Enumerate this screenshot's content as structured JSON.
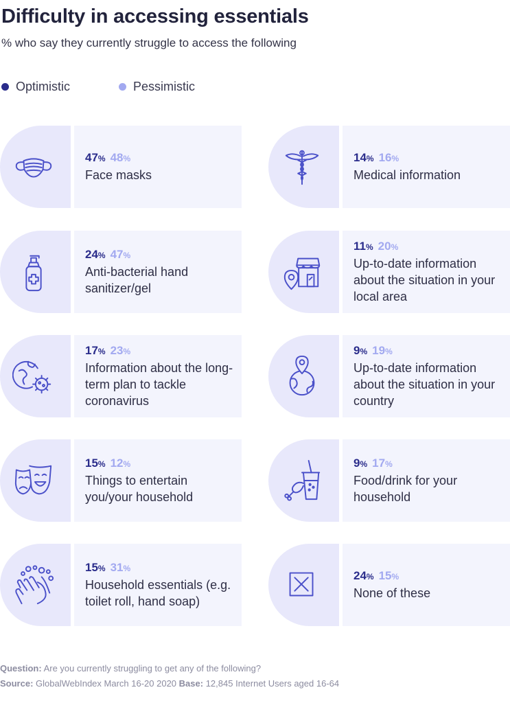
{
  "header": {
    "title": "Difficulty in accessing essentials",
    "subtitle": "% who say they currently struggle to access the following"
  },
  "legend": [
    {
      "label": "Optimistic",
      "color": "#2a2c8b"
    },
    {
      "label": "Pessimistic",
      "color": "#a2a9f0"
    }
  ],
  "colors": {
    "icon_panel": "#e8e8fb",
    "text_panel": "#f3f4fd",
    "icon_stroke": "#4a50c9"
  },
  "chart_data": {
    "type": "table",
    "unit": "%",
    "series": [
      {
        "name": "Optimistic",
        "values": [
          47,
          14,
          24,
          11,
          17,
          9,
          15,
          9,
          15,
          24
        ]
      },
      {
        "name": "Pessimistic",
        "values": [
          48,
          16,
          47,
          20,
          23,
          19,
          12,
          17,
          31,
          15
        ]
      }
    ],
    "items": [
      {
        "label": "Face masks",
        "optimistic": 47,
        "pessimistic": 48,
        "icon": "face-mask-icon"
      },
      {
        "label": "Medical information",
        "optimistic": 14,
        "pessimistic": 16,
        "icon": "caduceus-icon"
      },
      {
        "label": "Anti-bacterial hand sanitizer/gel",
        "optimistic": 24,
        "pessimistic": 47,
        "icon": "sanitizer-icon"
      },
      {
        "label": "Up-to-date information about the situation in your local area",
        "optimistic": 11,
        "pessimistic": 20,
        "icon": "local-shop-pin-icon"
      },
      {
        "label": "Information about the long-term plan to tackle coronavirus",
        "optimistic": 17,
        "pessimistic": 23,
        "icon": "globe-virus-icon"
      },
      {
        "label": "Up-to-date information about the situation in your country",
        "optimistic": 9,
        "pessimistic": 19,
        "icon": "globe-pin-icon"
      },
      {
        "label": "Things to entertain you/your household",
        "optimistic": 15,
        "pessimistic": 12,
        "icon": "theatre-masks-icon"
      },
      {
        "label": "Food/drink for your household",
        "optimistic": 9,
        "pessimistic": 17,
        "icon": "food-drink-icon"
      },
      {
        "label": "Household essentials (e.g. toilet roll, hand soap)",
        "optimistic": 15,
        "pessimistic": 31,
        "icon": "hand-washing-icon"
      },
      {
        "label": "None of these",
        "optimistic": 24,
        "pessimistic": 15,
        "icon": "x-box-icon"
      }
    ]
  },
  "footer": {
    "question_label": "Question:",
    "question_text": "Are you currently struggling to get any of the following?",
    "source_label": "Source:",
    "source_text": "GlobalWebIndex March 16-20 2020",
    "base_label": "Base:",
    "base_text": "12,845 Internet Users aged 16-64"
  }
}
